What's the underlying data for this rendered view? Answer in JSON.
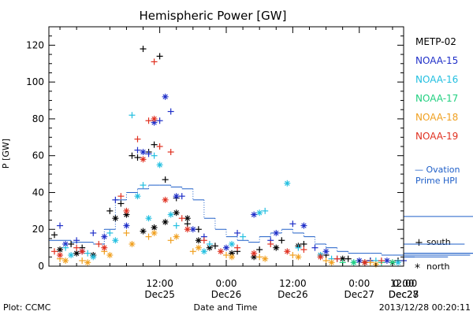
{
  "chart_data": {
    "type": "scatter",
    "title": "Hemispheric Power [GW]",
    "xlabel": "Date and Time",
    "ylabel": "P [GW]",
    "footer_left": "Plot: CCMC",
    "footer_right": "2013/12/28 00:20:11",
    "x_range_hours": [
      -8,
      56
    ],
    "ylim": [
      0,
      130
    ],
    "y_ticks": [
      0,
      20,
      40,
      60,
      80,
      100,
      120
    ],
    "x_ticks": [
      {
        "h": 12,
        "time": "12:00",
        "date": "Dec25"
      },
      {
        "h": 24,
        "time": "0:00",
        "date": "Dec26"
      },
      {
        "h": 36,
        "time": "12:00",
        "date": "Dec26"
      },
      {
        "h": 48,
        "time": "0:00",
        "date": "Dec27"
      },
      {
        "h": 60,
        "time": "12:00",
        "date": "Dec27"
      },
      {
        "h": 72,
        "time": "0:00",
        "date": "Dec28"
      }
    ],
    "legend": {
      "placement": "right",
      "entries": [
        {
          "name": "METP-02",
          "color": "#000000"
        },
        {
          "name": "NOAA-15",
          "color": "#1f2fc8"
        },
        {
          "name": "NOAA-16",
          "color": "#22bfe0"
        },
        {
          "name": "NOAA-17",
          "color": "#22d080"
        },
        {
          "name": "NOAA-18",
          "color": "#f0a020"
        },
        {
          "name": "NOAA-19",
          "color": "#e03020"
        }
      ]
    },
    "ovation_label": [
      "— Ovation",
      "Prime HPI"
    ],
    "ovation_color": "#1f5fc8",
    "marker_legend": [
      {
        "symbol": "+",
        "label": "south"
      },
      {
        "symbol": "*",
        "label": "north"
      }
    ],
    "ovation_hpi": [
      [
        -8,
        14
      ],
      [
        -4,
        13
      ],
      [
        0,
        12
      ],
      [
        2,
        20
      ],
      [
        4,
        36
      ],
      [
        6,
        40
      ],
      [
        8,
        42
      ],
      [
        10,
        44
      ],
      [
        12,
        44
      ],
      [
        14,
        43
      ],
      [
        16,
        42
      ],
      [
        18,
        36
      ],
      [
        20,
        26
      ],
      [
        22,
        20
      ],
      [
        24,
        16
      ],
      [
        26,
        14
      ],
      [
        28,
        13
      ],
      [
        30,
        16
      ],
      [
        32,
        18
      ],
      [
        34,
        20
      ],
      [
        36,
        18
      ],
      [
        38,
        16
      ],
      [
        40,
        12
      ],
      [
        42,
        10
      ],
      [
        44,
        8
      ],
      [
        46,
        7
      ],
      [
        48,
        7
      ],
      [
        50,
        7
      ],
      [
        52,
        6
      ],
      [
        54,
        6
      ],
      [
        56,
        6
      ],
      [
        58,
        5
      ],
      [
        60,
        6
      ],
      [
        62,
        6
      ],
      [
        64,
        5
      ],
      [
        66,
        6
      ],
      [
        67,
        12
      ],
      [
        68,
        6
      ],
      [
        69,
        27
      ],
      [
        70,
        7
      ],
      [
        72,
        7
      ]
    ],
    "series": [
      {
        "name": "METP-02",
        "color": "#000000",
        "south": [
          [
            -7,
            17
          ],
          [
            -4,
            12
          ],
          [
            -2,
            10
          ],
          [
            3,
            30
          ],
          [
            5,
            34
          ],
          [
            7,
            60
          ],
          [
            8,
            59
          ],
          [
            9,
            118
          ],
          [
            10,
            62
          ],
          [
            11,
            66
          ],
          [
            12,
            114
          ],
          [
            13,
            47
          ],
          [
            15,
            37
          ],
          [
            17,
            23
          ],
          [
            19,
            20
          ],
          [
            22,
            11
          ],
          [
            26,
            8
          ],
          [
            30,
            9
          ],
          [
            34,
            14
          ],
          [
            38,
            12
          ],
          [
            42,
            6
          ],
          [
            46,
            4
          ],
          [
            50,
            3
          ],
          [
            55,
            3
          ],
          [
            60,
            3
          ],
          [
            65,
            4
          ],
          [
            69,
            4
          ]
        ],
        "north": [
          [
            -6,
            9
          ],
          [
            -3,
            7
          ],
          [
            0,
            6
          ],
          [
            4,
            26
          ],
          [
            6,
            28
          ],
          [
            9,
            19
          ],
          [
            11,
            21
          ],
          [
            13,
            24
          ],
          [
            15,
            29
          ],
          [
            17,
            26
          ],
          [
            19,
            14
          ],
          [
            21,
            10
          ],
          [
            25,
            7
          ],
          [
            29,
            5
          ],
          [
            33,
            10
          ],
          [
            37,
            11
          ],
          [
            41,
            6
          ],
          [
            45,
            4
          ],
          [
            49,
            2
          ],
          [
            54,
            2
          ],
          [
            58,
            2
          ],
          [
            63,
            2
          ],
          [
            67,
            2
          ],
          [
            70,
            4
          ]
        ]
      },
      {
        "name": "NOAA-15",
        "color": "#1f2fc8",
        "south": [
          [
            -6,
            22
          ],
          [
            -3,
            14
          ],
          [
            0,
            18
          ],
          [
            4,
            36
          ],
          [
            8,
            63
          ],
          [
            10,
            61
          ],
          [
            12,
            79
          ],
          [
            14,
            84
          ],
          [
            16,
            38
          ],
          [
            20,
            16
          ],
          [
            26,
            18
          ],
          [
            32,
            14
          ],
          [
            36,
            23
          ],
          [
            40,
            10
          ],
          [
            44,
            4
          ],
          [
            50,
            3
          ],
          [
            56,
            3
          ],
          [
            62,
            3
          ]
        ],
        "north": [
          [
            -5,
            12
          ],
          [
            -2,
            8
          ],
          [
            2,
            16
          ],
          [
            6,
            22
          ],
          [
            9,
            62
          ],
          [
            11,
            78
          ],
          [
            13,
            92
          ],
          [
            15,
            38
          ],
          [
            18,
            20
          ],
          [
            24,
            10
          ],
          [
            29,
            28
          ],
          [
            33,
            18
          ],
          [
            38,
            22
          ],
          [
            42,
            8
          ],
          [
            48,
            3
          ],
          [
            53,
            3
          ],
          [
            59,
            2
          ],
          [
            65,
            2
          ]
        ]
      },
      {
        "name": "NOAA-16",
        "color": "#22bfe0",
        "south": [
          [
            -5,
            10
          ],
          [
            -1,
            7
          ],
          [
            3,
            18
          ],
          [
            7,
            82
          ],
          [
            9,
            44
          ],
          [
            11,
            60
          ],
          [
            15,
            22
          ],
          [
            21,
            12
          ],
          [
            27,
            16
          ],
          [
            31,
            30
          ],
          [
            37,
            10
          ],
          [
            43,
            4
          ],
          [
            51,
            3
          ],
          [
            57,
            2
          ],
          [
            63,
            2
          ]
        ],
        "north": [
          [
            -4,
            6
          ],
          [
            0,
            5
          ],
          [
            4,
            14
          ],
          [
            8,
            38
          ],
          [
            10,
            26
          ],
          [
            12,
            55
          ],
          [
            14,
            28
          ],
          [
            20,
            8
          ],
          [
            25,
            12
          ],
          [
            30,
            29
          ],
          [
            35,
            45
          ],
          [
            41,
            6
          ],
          [
            47,
            2
          ],
          [
            55,
            2
          ],
          [
            61,
            2
          ]
        ]
      },
      {
        "name": "NOAA-17",
        "color": "#22d080",
        "south": [
          [
            45,
            2
          ],
          [
            52,
            2
          ],
          [
            58,
            2
          ]
        ],
        "north": [
          [
            47,
            2
          ],
          [
            54,
            2
          ]
        ]
      },
      {
        "name": "NOAA-18",
        "color": "#f0a020",
        "south": [
          [
            -6,
            4
          ],
          [
            -2,
            3
          ],
          [
            2,
            8
          ],
          [
            6,
            18
          ],
          [
            10,
            16
          ],
          [
            14,
            14
          ],
          [
            18,
            8
          ],
          [
            24,
            6
          ],
          [
            30,
            5
          ],
          [
            36,
            6
          ],
          [
            42,
            3
          ],
          [
            50,
            2
          ],
          [
            58,
            2
          ],
          [
            66,
            2
          ]
        ],
        "north": [
          [
            -5,
            3
          ],
          [
            -1,
            2
          ],
          [
            3,
            6
          ],
          [
            7,
            12
          ],
          [
            11,
            18
          ],
          [
            15,
            16
          ],
          [
            19,
            10
          ],
          [
            25,
            5
          ],
          [
            31,
            4
          ],
          [
            37,
            5
          ],
          [
            43,
            2
          ],
          [
            51,
            1
          ],
          [
            59,
            1
          ],
          [
            67,
            1
          ]
        ]
      },
      {
        "name": "NOAA-19",
        "color": "#e03020",
        "south": [
          [
            -7,
            8
          ],
          [
            -3,
            10
          ],
          [
            1,
            12
          ],
          [
            5,
            38
          ],
          [
            8,
            69
          ],
          [
            10,
            79
          ],
          [
            11,
            111
          ],
          [
            12,
            65
          ],
          [
            14,
            62
          ],
          [
            16,
            26
          ],
          [
            20,
            14
          ],
          [
            26,
            10
          ],
          [
            32,
            12
          ],
          [
            38,
            9
          ],
          [
            44,
            4
          ],
          [
            52,
            3
          ],
          [
            60,
            3
          ],
          [
            68,
            3
          ]
        ],
        "north": [
          [
            -6,
            6
          ],
          [
            -2,
            8
          ],
          [
            2,
            10
          ],
          [
            6,
            30
          ],
          [
            9,
            58
          ],
          [
            11,
            80
          ],
          [
            13,
            36
          ],
          [
            17,
            20
          ],
          [
            23,
            8
          ],
          [
            29,
            7
          ],
          [
            35,
            8
          ],
          [
            41,
            5
          ],
          [
            49,
            2
          ],
          [
            57,
            2
          ],
          [
            65,
            2
          ]
        ]
      }
    ]
  }
}
